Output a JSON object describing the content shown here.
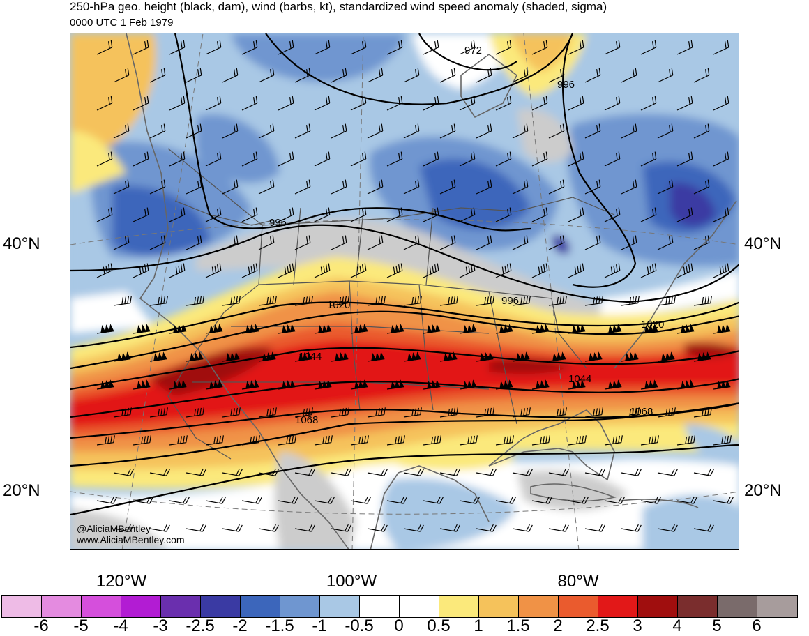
{
  "title": "250-hPa geo. height (black, dam), wind (barbs, kt), standardized wind speed anomaly (shaded, sigma)",
  "subtitle": "0000 UTC 1 Feb 1979",
  "lat_labels": [
    "40°N",
    "20°N"
  ],
  "lon_labels": [
    "120°W",
    "100°W",
    "80°W"
  ],
  "contour_labels": [
    "972",
    "996",
    "996",
    "996",
    "1020",
    "1020",
    "1044",
    "1044",
    "1068",
    "1068"
  ],
  "credit": {
    "handle": "@AliciaMBentley",
    "website": "www.AliciaMBentley.com"
  },
  "colorbar": {
    "colors": [
      "#eebbe6",
      "#e48be0",
      "#d54fdc",
      "#b21cd3",
      "#6a2fae",
      "#3a3aa3",
      "#3c66bb",
      "#6f96d0",
      "#a9c8e5",
      "#ffffff",
      "#ffffff",
      "#fbe97b",
      "#f5c25b",
      "#f09246",
      "#ea5b2e",
      "#e21818",
      "#a00e0e",
      "#7a2d2d",
      "#7a6b6b",
      "#a79c9c"
    ],
    "labels": [
      "-6",
      "-5",
      "-4",
      "-3",
      "-2.5",
      "-2",
      "-1.5",
      "-1",
      "-0.5",
      "0",
      "0.5",
      "1",
      "1.5",
      "2",
      "2.5",
      "3",
      "4",
      "5",
      "6"
    ]
  }
}
